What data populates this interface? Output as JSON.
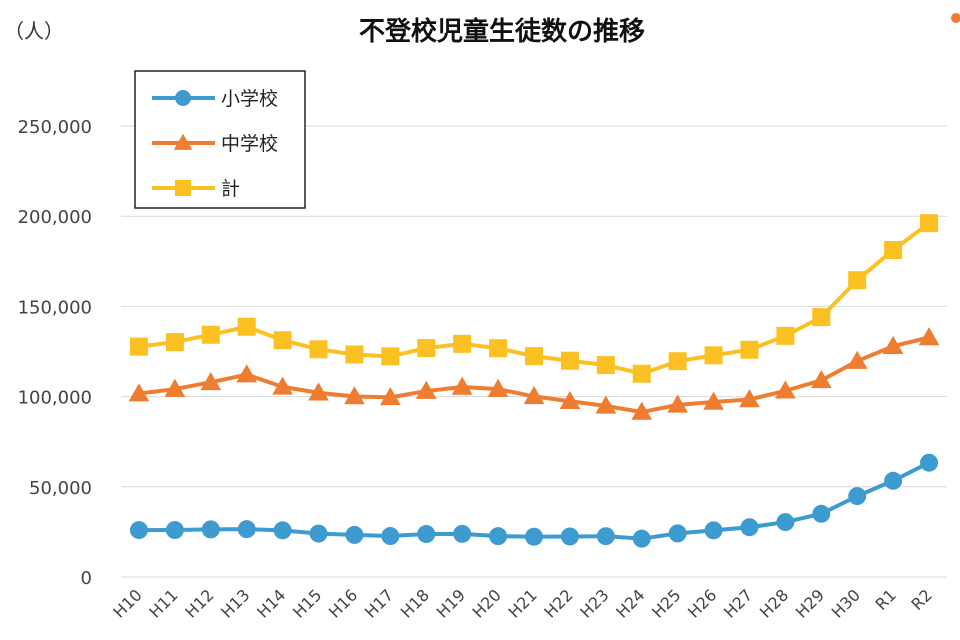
{
  "chart_data": {
    "type": "line",
    "title": "不登校児童生徒数の推移",
    "unit_label": "（人）",
    "categories": [
      "H10",
      "H11",
      "H12",
      "H13",
      "H14",
      "H15",
      "H16",
      "H17",
      "H18",
      "H19",
      "H20",
      "H21",
      "H22",
      "H23",
      "H24",
      "H25",
      "H26",
      "H27",
      "H28",
      "H29",
      "H30",
      "R1",
      "R2"
    ],
    "ylim": [
      0,
      250000
    ],
    "yticks": [
      0,
      50000,
      100000,
      150000,
      200000,
      250000
    ],
    "ytick_labels": [
      "0",
      "50,000",
      "100,000",
      "150,000",
      "200,000",
      "250,000"
    ],
    "grid": true,
    "legend_position": "top-left",
    "series": [
      {
        "name": "小学校",
        "color": "#3d9bd0",
        "marker": "circle",
        "values": [
          26017,
          26047,
          26373,
          26511,
          25869,
          24077,
          23318,
          22709,
          23825,
          23927,
          22652,
          22327,
          22463,
          22622,
          21243,
          24175,
          25864,
          27583,
          30448,
          35032,
          44841,
          53350,
          63350
        ]
      },
      {
        "name": "中学校",
        "color": "#ef7d31",
        "marker": "triangle",
        "values": [
          101675,
          104180,
          107913,
          112211,
          105383,
          102149,
          100040,
          99578,
          103069,
          105328,
          104153,
          100105,
          97428,
          94836,
          91446,
          95442,
          97033,
          98408,
          103235,
          108999,
          119687,
          127922,
          132777
        ]
      },
      {
        "name": "計",
        "color": "#fbc021",
        "marker": "square",
        "values": [
          127692,
          130227,
          134286,
          138722,
          131252,
          126226,
          123358,
          122287,
          126894,
          129255,
          126805,
          122432,
          119891,
          117458,
          112689,
          119617,
          122897,
          125991,
          133683,
          144031,
          164528,
          181272,
          196127
        ]
      }
    ]
  }
}
